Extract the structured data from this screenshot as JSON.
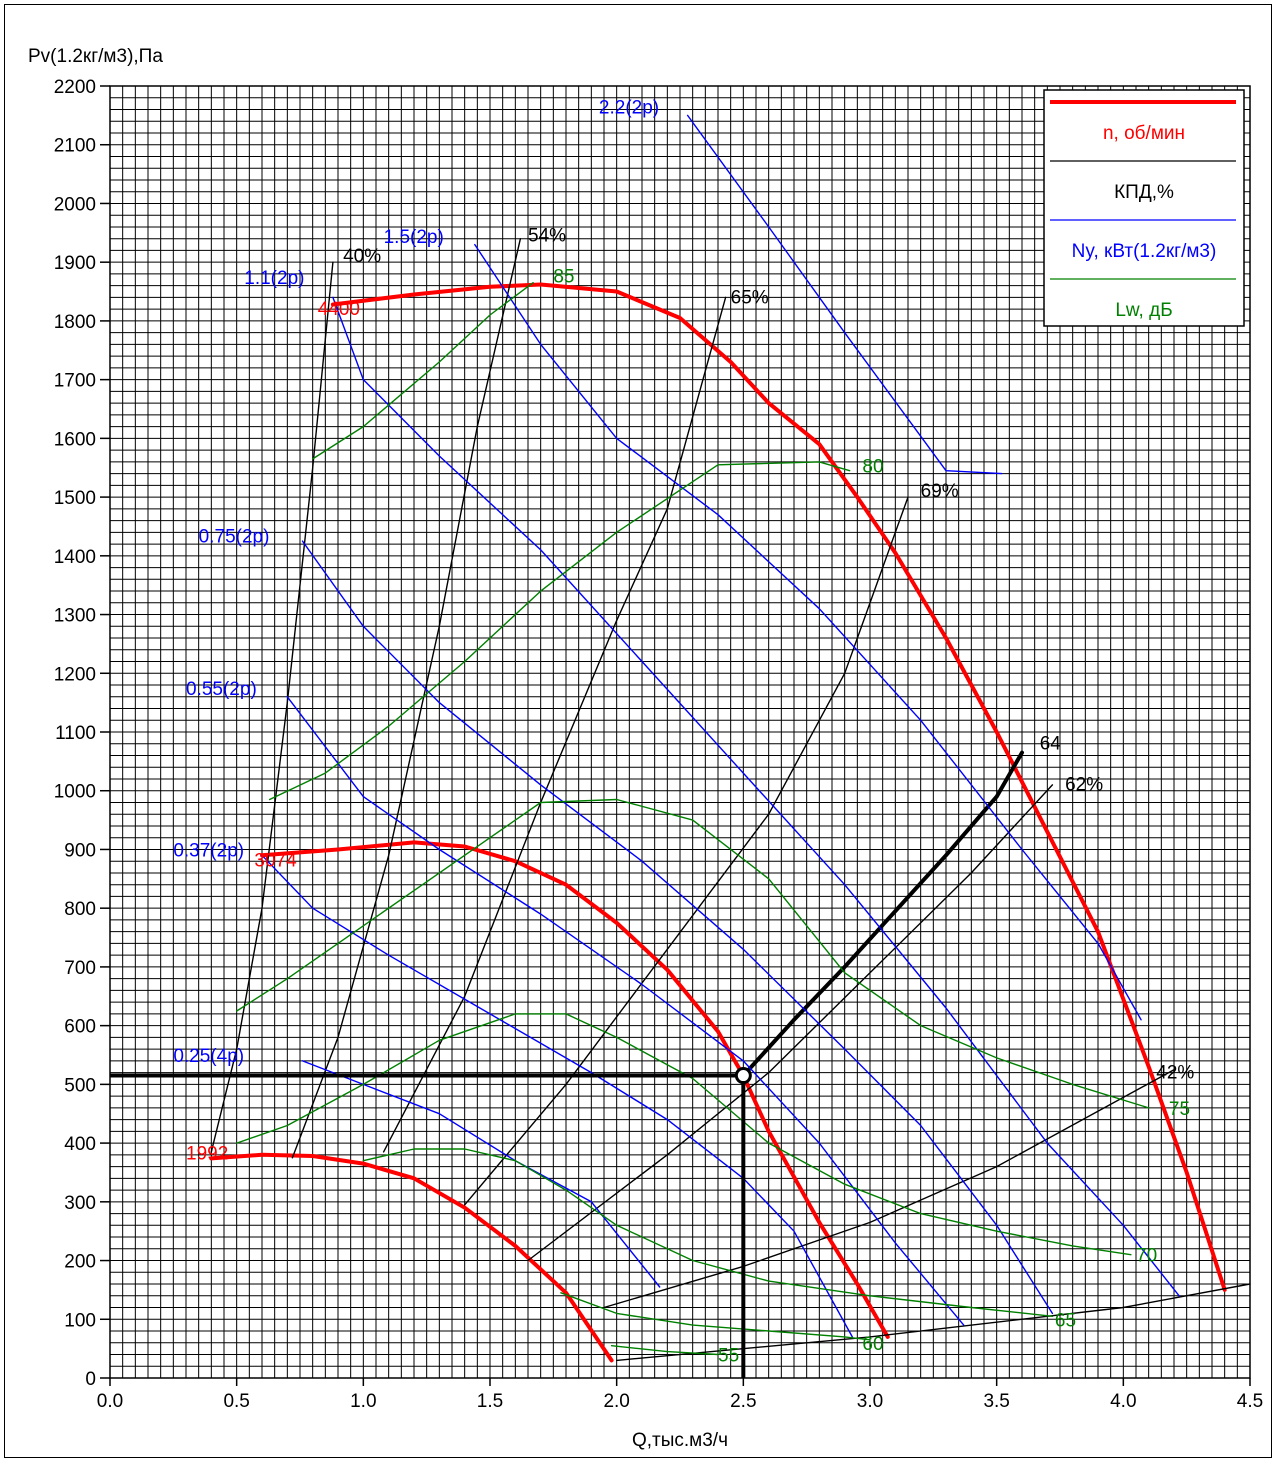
{
  "chart_data": {
    "type": "line",
    "ylabel": "Pv(1.2кг/м3),Па",
    "xlabel": "Q,тыс.м3/ч",
    "xlim": [
      0,
      4.5
    ],
    "ylim": [
      0,
      2200
    ],
    "x_ticks": [
      "0.0",
      "0.5",
      "1.0",
      "1.5",
      "2.0",
      "2.5",
      "3.0",
      "3.5",
      "4.0",
      "4.5"
    ],
    "y_ticks": [
      "0",
      "100",
      "200",
      "300",
      "400",
      "500",
      "600",
      "700",
      "800",
      "900",
      "1000",
      "1100",
      "1200",
      "1300",
      "1400",
      "1500",
      "1600",
      "1700",
      "1800",
      "1900",
      "2000",
      "2100",
      "2200"
    ],
    "grid": true,
    "legend_position": "top-right",
    "legend": [
      {
        "label": "n, об/мин",
        "color": "#ff0000",
        "width": 4
      },
      {
        "label": "КПД,%",
        "color": "#000000",
        "width": 1.3
      },
      {
        "label": "Ny, кВт(1.2кг/м3)",
        "color": "#0000ff",
        "width": 1.3
      },
      {
        "label": "Lw, дБ",
        "color": "#008000",
        "width": 1.3
      }
    ],
    "series": [
      {
        "group": "speed",
        "name": "4400",
        "color": "#ff0000",
        "label_at": [
          0.82,
          1810
        ],
        "points": [
          [
            0.88,
            1828
          ],
          [
            1.2,
            1845
          ],
          [
            1.5,
            1858
          ],
          [
            1.7,
            1862
          ],
          [
            2.0,
            1850
          ],
          [
            2.25,
            1805
          ],
          [
            2.45,
            1730
          ],
          [
            2.6,
            1660
          ],
          [
            2.8,
            1590
          ],
          [
            2.95,
            1500
          ],
          [
            3.1,
            1405
          ],
          [
            3.3,
            1260
          ],
          [
            3.5,
            1100
          ],
          [
            3.7,
            930
          ],
          [
            3.9,
            760
          ],
          [
            4.1,
            530
          ],
          [
            4.25,
            350
          ],
          [
            4.4,
            150
          ]
        ]
      },
      {
        "group": "speed",
        "name": "3074",
        "color": "#ff0000",
        "label_at": [
          0.57,
          871
        ],
        "points": [
          [
            0.6,
            890
          ],
          [
            0.9,
            900
          ],
          [
            1.2,
            912
          ],
          [
            1.4,
            905
          ],
          [
            1.6,
            880
          ],
          [
            1.8,
            840
          ],
          [
            2.0,
            775
          ],
          [
            2.2,
            695
          ],
          [
            2.4,
            590
          ],
          [
            2.5,
            515
          ],
          [
            2.6,
            420
          ],
          [
            2.8,
            265
          ],
          [
            2.95,
            160
          ],
          [
            3.07,
            70
          ]
        ]
      },
      {
        "group": "speed",
        "name": "1992",
        "color": "#ff0000",
        "label_at": [
          0.3,
          372
        ],
        "points": [
          [
            0.4,
            374
          ],
          [
            0.6,
            380
          ],
          [
            0.8,
            378
          ],
          [
            1.0,
            365
          ],
          [
            1.2,
            340
          ],
          [
            1.4,
            290
          ],
          [
            1.6,
            225
          ],
          [
            1.8,
            145
          ],
          [
            1.98,
            30
          ]
        ]
      },
      {
        "group": "efficiency",
        "name": "40%",
        "color": "#000000",
        "label_at": [
          0.92,
          1900
        ],
        "points": [
          [
            0.4,
            385
          ],
          [
            0.5,
            560
          ],
          [
            0.6,
            800
          ],
          [
            0.7,
            1150
          ],
          [
            0.8,
            1550
          ],
          [
            0.88,
            1900
          ]
        ]
      },
      {
        "group": "efficiency",
        "name": "54%",
        "color": "#000000",
        "label_at": [
          1.65,
          1935
        ],
        "points": [
          [
            0.72,
            375
          ],
          [
            0.9,
            580
          ],
          [
            1.1,
            890
          ],
          [
            1.3,
            1280
          ],
          [
            1.45,
            1620
          ],
          [
            1.62,
            1940
          ]
        ]
      },
      {
        "group": "efficiency",
        "name": "65%",
        "color": "#000000",
        "label_at": [
          2.45,
          1830
        ],
        "points": [
          [
            1.08,
            385
          ],
          [
            1.4,
            650
          ],
          [
            1.7,
            980
          ],
          [
            2.0,
            1290
          ],
          [
            2.2,
            1480
          ],
          [
            2.43,
            1840
          ]
        ]
      },
      {
        "group": "efficiency",
        "name": "69%",
        "color": "#000000",
        "label_at": [
          3.2,
          1500
        ],
        "points": [
          [
            1.4,
            295
          ],
          [
            1.8,
            500
          ],
          [
            2.2,
            730
          ],
          [
            2.6,
            960
          ],
          [
            2.9,
            1200
          ],
          [
            3.15,
            1500
          ]
        ]
      },
      {
        "group": "efficiency",
        "name": "62%",
        "color": "#000000",
        "label_at": [
          3.77,
          1000
        ],
        "points": [
          [
            1.65,
            200
          ],
          [
            2.2,
            380
          ],
          [
            2.6,
            520
          ],
          [
            3.0,
            690
          ],
          [
            3.4,
            860
          ],
          [
            3.72,
            1010
          ]
        ]
      },
      {
        "group": "efficiency",
        "name": "42%",
        "color": "#000000",
        "label_at": [
          4.13,
          510
        ],
        "points": [
          [
            1.95,
            120
          ],
          [
            2.5,
            190
          ],
          [
            3.0,
            265
          ],
          [
            3.5,
            360
          ],
          [
            4.2,
            525
          ]
        ]
      },
      {
        "group": "efficiency",
        "name": "",
        "color": "#000000",
        "label_at": null,
        "points": [
          [
            2.0,
            30
          ],
          [
            3.0,
            70
          ],
          [
            4.0,
            120
          ],
          [
            4.5,
            160
          ]
        ]
      },
      {
        "group": "operating",
        "name": "64",
        "color": "#000000",
        "label_at": [
          3.67,
          1070
        ],
        "points": [
          [
            2.5,
            515
          ],
          [
            2.7,
            610
          ],
          [
            2.9,
            700
          ],
          [
            3.1,
            795
          ],
          [
            3.3,
            890
          ],
          [
            3.5,
            990
          ],
          [
            3.6,
            1065
          ]
        ]
      },
      {
        "group": "power",
        "name": "2.2(2p)",
        "color": "#0000ff",
        "label_at": [
          1.93,
          2153
        ],
        "points": [
          [
            2.28,
            2150
          ],
          [
            2.6,
            1960
          ],
          [
            2.9,
            1780
          ],
          [
            3.3,
            1545
          ],
          [
            3.52,
            1540
          ]
        ]
      },
      {
        "group": "power",
        "name": "1.5(2p)",
        "color": "#0000ff",
        "label_at": [
          1.08,
          1933
        ],
        "points": [
          [
            1.44,
            1930
          ],
          [
            1.7,
            1760
          ],
          [
            2.0,
            1600
          ],
          [
            2.4,
            1470
          ],
          [
            2.8,
            1310
          ],
          [
            3.2,
            1120
          ],
          [
            3.6,
            900
          ],
          [
            3.9,
            740
          ],
          [
            4.07,
            610
          ]
        ]
      },
      {
        "group": "power",
        "name": "1.1(2p)",
        "color": "#0000ff",
        "label_at": [
          0.53,
          1863
        ],
        "points": [
          [
            0.88,
            1840
          ],
          [
            1.0,
            1700
          ],
          [
            1.3,
            1570
          ],
          [
            1.7,
            1410
          ],
          [
            2.1,
            1220
          ],
          [
            2.5,
            1030
          ],
          [
            2.9,
            840
          ],
          [
            3.3,
            630
          ],
          [
            3.7,
            400
          ],
          [
            4.0,
            260
          ],
          [
            4.22,
            140
          ]
        ]
      },
      {
        "group": "power",
        "name": "0.75(2p)",
        "color": "#0000ff",
        "label_at": [
          0.35,
          1423
        ],
        "points": [
          [
            0.76,
            1425
          ],
          [
            1.0,
            1280
          ],
          [
            1.3,
            1150
          ],
          [
            1.7,
            1010
          ],
          [
            2.1,
            880
          ],
          [
            2.5,
            730
          ],
          [
            2.9,
            560
          ],
          [
            3.2,
            430
          ],
          [
            3.5,
            260
          ],
          [
            3.72,
            110
          ]
        ]
      },
      {
        "group": "power",
        "name": "0.55(2p)",
        "color": "#0000ff",
        "label_at": [
          0.3,
          1163
        ],
        "points": [
          [
            0.7,
            1160
          ],
          [
            1.0,
            990
          ],
          [
            1.3,
            900
          ],
          [
            1.7,
            790
          ],
          [
            2.1,
            670
          ],
          [
            2.5,
            540
          ],
          [
            2.8,
            400
          ],
          [
            3.1,
            230
          ],
          [
            3.37,
            90
          ]
        ]
      },
      {
        "group": "power",
        "name": "0.37(2p)",
        "color": "#0000ff",
        "label_at": [
          0.25,
          888
        ],
        "points": [
          [
            0.6,
            890
          ],
          [
            0.8,
            800
          ],
          [
            1.1,
            720
          ],
          [
            1.5,
            620
          ],
          [
            1.9,
            520
          ],
          [
            2.2,
            440
          ],
          [
            2.5,
            340
          ],
          [
            2.7,
            250
          ],
          [
            2.93,
            70
          ]
        ]
      },
      {
        "group": "power",
        "name": "0.25(4p)",
        "color": "#0000ff",
        "label_at": [
          0.25,
          538
        ],
        "points": [
          [
            0.76,
            540
          ],
          [
            1.0,
            500
          ],
          [
            1.3,
            450
          ],
          [
            1.6,
            370
          ],
          [
            1.9,
            300
          ],
          [
            2.17,
            155
          ]
        ]
      },
      {
        "group": "noise",
        "name": "85",
        "color": "#008000",
        "label_at": [
          1.75,
          1865
        ],
        "points": [
          [
            0.8,
            1565
          ],
          [
            1.0,
            1620
          ],
          [
            1.3,
            1730
          ],
          [
            1.5,
            1810
          ],
          [
            1.67,
            1865
          ]
        ]
      },
      {
        "group": "noise",
        "name": "80",
        "color": "#008000",
        "label_at": [
          2.97,
          1542
        ],
        "points": [
          [
            0.63,
            985
          ],
          [
            0.85,
            1030
          ],
          [
            1.1,
            1110
          ],
          [
            1.4,
            1220
          ],
          [
            1.7,
            1340
          ],
          [
            2.0,
            1440
          ],
          [
            2.4,
            1555
          ],
          [
            2.8,
            1560
          ],
          [
            2.92,
            1545
          ]
        ]
      },
      {
        "group": "noise",
        "name": "75",
        "color": "#008000",
        "label_at": [
          4.18,
          448
        ],
        "points": [
          [
            0.5,
            625
          ],
          [
            0.7,
            680
          ],
          [
            0.9,
            740
          ],
          [
            1.2,
            830
          ],
          [
            1.5,
            920
          ],
          [
            1.7,
            980
          ],
          [
            2.0,
            985
          ],
          [
            2.3,
            950
          ],
          [
            2.6,
            850
          ],
          [
            2.9,
            690
          ],
          [
            3.2,
            600
          ],
          [
            3.5,
            545
          ],
          [
            3.8,
            500
          ],
          [
            4.1,
            460
          ]
        ]
      },
      {
        "group": "noise",
        "name": "70",
        "color": "#008000",
        "label_at": [
          4.05,
          198
        ],
        "points": [
          [
            0.5,
            400
          ],
          [
            0.7,
            430
          ],
          [
            1.0,
            500
          ],
          [
            1.3,
            575
          ],
          [
            1.6,
            620
          ],
          [
            1.8,
            620
          ],
          [
            2.0,
            580
          ],
          [
            2.3,
            510
          ],
          [
            2.6,
            400
          ],
          [
            2.9,
            330
          ],
          [
            3.2,
            280
          ],
          [
            3.5,
            250
          ],
          [
            3.8,
            225
          ],
          [
            4.03,
            210
          ]
        ]
      },
      {
        "group": "noise",
        "name": "65",
        "color": "#008000",
        "label_at": [
          3.73,
          88
        ],
        "points": [
          [
            1.0,
            370
          ],
          [
            1.2,
            390
          ],
          [
            1.4,
            390
          ],
          [
            1.6,
            370
          ],
          [
            1.8,
            320
          ],
          [
            2.0,
            260
          ],
          [
            2.3,
            200
          ],
          [
            2.6,
            165
          ],
          [
            3.0,
            140
          ],
          [
            3.4,
            120
          ],
          [
            3.72,
            105
          ]
        ]
      },
      {
        "group": "noise",
        "name": "60",
        "color": "#008000",
        "label_at": [
          2.97,
          48
        ],
        "points": [
          [
            1.78,
            145
          ],
          [
            2.0,
            110
          ],
          [
            2.3,
            90
          ],
          [
            2.6,
            80
          ],
          [
            2.9,
            70
          ],
          [
            3.0,
            65
          ]
        ]
      },
      {
        "group": "noise",
        "name": "55",
        "color": "#008000",
        "label_at": [
          2.4,
          28
        ],
        "points": [
          [
            1.98,
            55
          ],
          [
            2.2,
            45
          ],
          [
            2.4,
            40
          ]
        ]
      }
    ],
    "operating_point": {
      "x": 2.5,
      "y": 515
    }
  }
}
